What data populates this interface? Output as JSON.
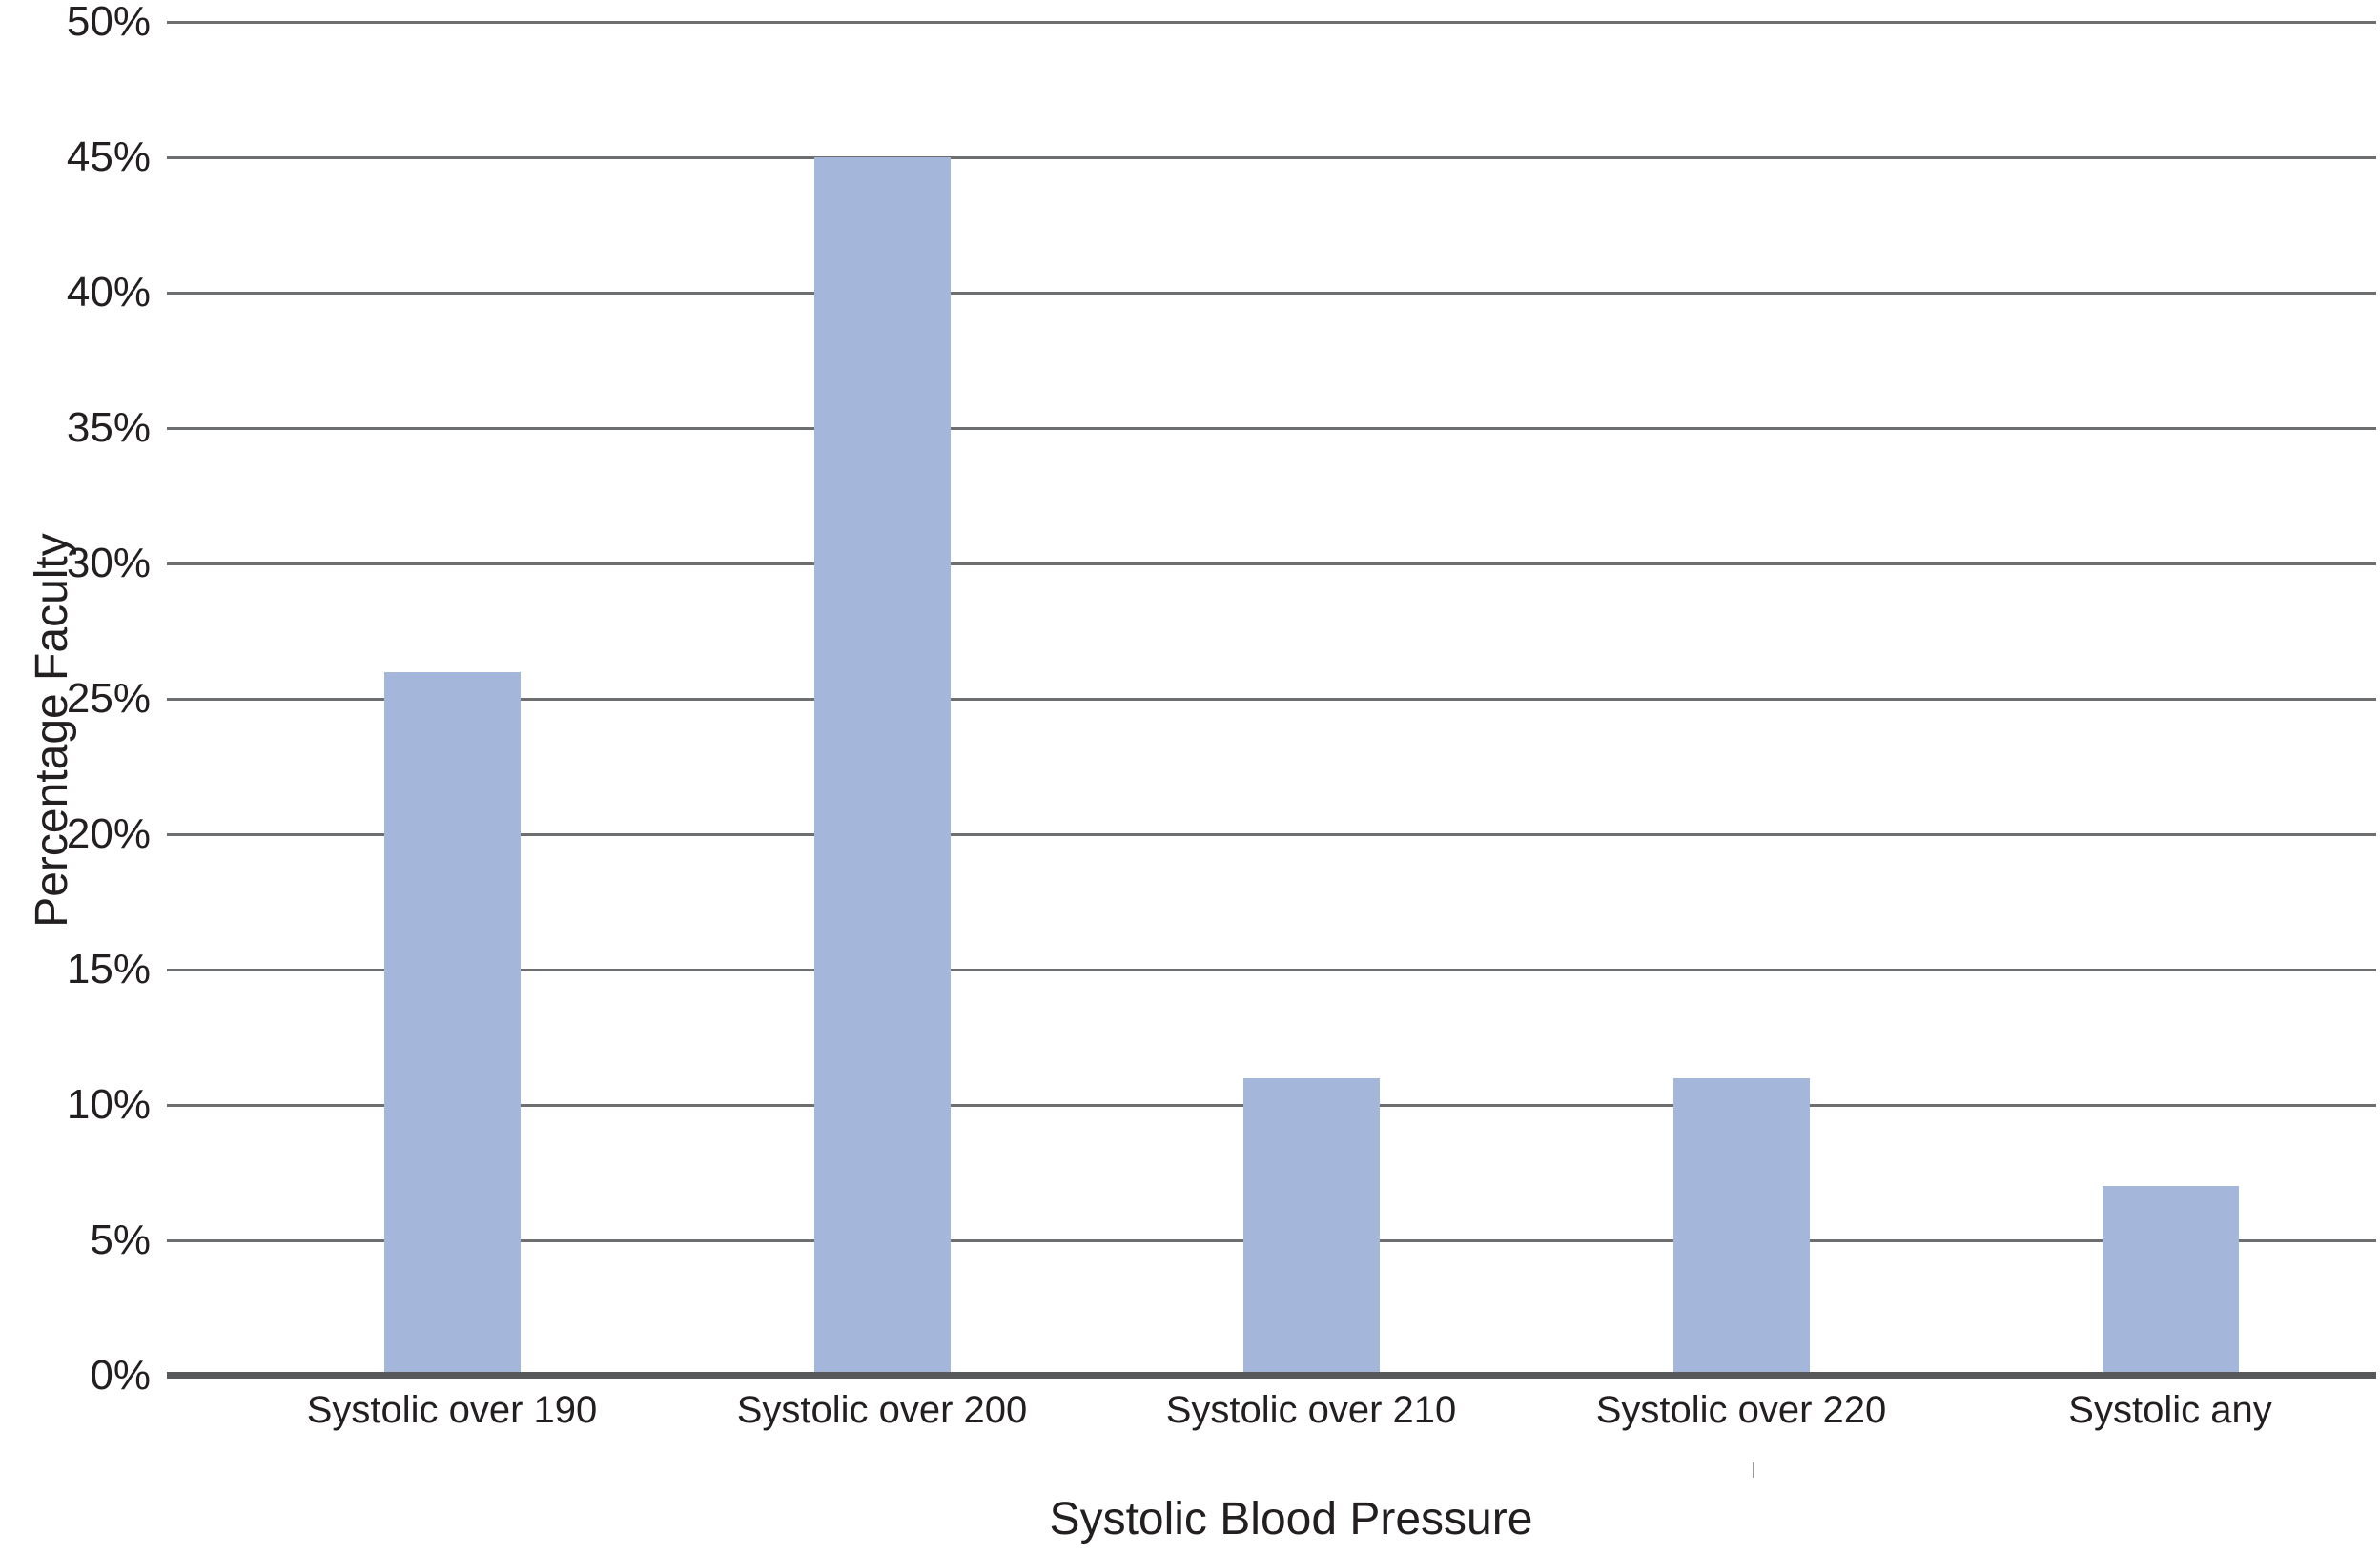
{
  "chart_data": {
    "type": "bar",
    "title": "",
    "categories": [
      "Systolic over 190",
      "Systolic over 200",
      "Systolic over 210",
      "Systolic over 220",
      "Systolic any"
    ],
    "values": [
      26,
      45,
      11,
      11,
      7
    ],
    "xlabel": "Systolic Blood Pressure",
    "ylabel": "Percentage Faculty",
    "ylim": [
      0,
      50
    ],
    "ytick_step": 5,
    "ytick_labels": [
      "0%",
      "5%",
      "10%",
      "15%",
      "20%",
      "25%",
      "30%",
      "35%",
      "40%",
      "45%",
      "50%"
    ],
    "grid": "horizontal",
    "legend_position": "none",
    "colors": {
      "bar_fill": "#a4b7da",
      "gridline": "#6d6e70",
      "axis_line": "#58595b",
      "text": "#231f20",
      "background": "#ffffff"
    }
  }
}
